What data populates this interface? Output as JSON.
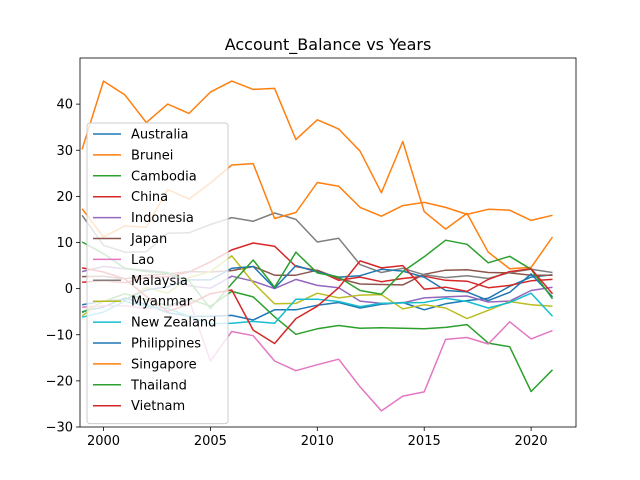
{
  "chart_data": {
    "type": "line",
    "title": "Account_Balance vs Years",
    "xlabel": "",
    "ylabel": "",
    "xlim": [
      1998.9,
      2022.1
    ],
    "ylim": [
      -30,
      50
    ],
    "x_ticks": [
      2000,
      2005,
      2010,
      2015,
      2020
    ],
    "y_ticks": [
      -30,
      -20,
      -10,
      0,
      10,
      20,
      30,
      40
    ],
    "grid": false,
    "legend_position": "center-left",
    "x": [
      1999,
      2000,
      2001,
      2002,
      2003,
      2004,
      2005,
      2006,
      2007,
      2008,
      2009,
      2010,
      2011,
      2012,
      2013,
      2014,
      2015,
      2016,
      2017,
      2018,
      2019,
      2020,
      2021
    ],
    "series": [
      {
        "name": "Australia",
        "color": "#1f77b4",
        "values": [
          -5.0,
          -4.0,
          -2.0,
          -3.5,
          -5.2,
          -6.0,
          -6.0,
          -5.8,
          -6.8,
          -4.6,
          -4.6,
          -3.6,
          -3.0,
          -4.2,
          -3.4,
          -3.0,
          -4.6,
          -3.3,
          -2.6,
          -2.1,
          0.5,
          2.5,
          3.0
        ]
      },
      {
        "name": "Brunei",
        "color": "#ff7f0e",
        "values": [
          30.2,
          45.0,
          42.0,
          36.0,
          40.0,
          38.0,
          42.6,
          45.0,
          43.2,
          43.4,
          32.3,
          36.6,
          34.6,
          29.8,
          20.8,
          31.9,
          16.7,
          12.9,
          16.3,
          7.9,
          4.3,
          4.6,
          11.2
        ]
      },
      {
        "name": "Cambodia",
        "color": "#2ca02c",
        "values": [
          -5.2,
          -2.8,
          -1.1,
          -2.4,
          -3.7,
          -2.2,
          -3.8,
          -0.6,
          -1.8,
          -6.1,
          -9.9,
          -8.7,
          -8.0,
          -8.6,
          -8.5,
          -8.6,
          -8.7,
          -8.4,
          -7.8,
          -11.8,
          -12.6,
          -22.3,
          -17.6
        ]
      },
      {
        "name": "China",
        "color": "#d62728",
        "values": [
          1.4,
          1.7,
          1.3,
          2.4,
          2.6,
          3.6,
          5.8,
          8.4,
          9.9,
          9.2,
          4.8,
          3.9,
          1.8,
          2.5,
          1.5,
          2.2,
          2.7,
          1.8,
          1.6,
          0.2,
          0.7,
          1.7,
          2.0
        ]
      },
      {
        "name": "Indonesia",
        "color": "#9467bd",
        "values": [
          3.7,
          4.8,
          4.3,
          4.0,
          3.5,
          0.6,
          0.1,
          2.7,
          1.6,
          0.0,
          2.0,
          0.7,
          0.2,
          -2.7,
          -3.2,
          -3.1,
          -2.0,
          -1.8,
          -1.6,
          -2.9,
          -2.7,
          -0.4,
          0.3
        ]
      },
      {
        "name": "Japan",
        "color": "#8c564b",
        "values": [
          2.6,
          2.7,
          2.1,
          2.9,
          3.2,
          3.7,
          3.6,
          3.9,
          4.8,
          2.9,
          2.9,
          4.0,
          2.2,
          1.0,
          0.9,
          0.8,
          3.1,
          4.0,
          4.1,
          3.5,
          3.4,
          2.9,
          2.9
        ]
      },
      {
        "name": "Lao",
        "color": "#e377c2",
        "values": [
          -4.0,
          -3.7,
          -3.7,
          -4.3,
          -4.1,
          -2.4,
          -15.7,
          -9.3,
          -10.2,
          -15.7,
          -17.8,
          -16.5,
          -15.3,
          -21.3,
          -26.5,
          -23.3,
          -22.4,
          -11.0,
          -10.6,
          -12.0,
          -7.2,
          -10.9,
          -9.1
        ]
      },
      {
        "name": "Malaysia",
        "color": "#7f7f7f",
        "values": [
          15.9,
          9.4,
          7.9,
          8.0,
          12.0,
          12.1,
          13.9,
          15.4,
          14.6,
          16.4,
          15.0,
          10.1,
          10.9,
          5.2,
          3.5,
          4.4,
          3.0,
          2.4,
          2.8,
          2.2,
          3.5,
          4.2,
          3.5
        ]
      },
      {
        "name": "Myanmar",
        "color": "#bcbd22",
        "values": [
          -5.9,
          -2.6,
          -2.4,
          0.2,
          -1.0,
          2.4,
          3.7,
          7.1,
          1.3,
          -3.3,
          -3.2,
          -1.0,
          -2.0,
          -1.4,
          -1.3,
          -4.4,
          -3.5,
          -4.2,
          -6.5,
          -4.7,
          -2.8,
          -3.5,
          -3.8
        ]
      },
      {
        "name": "New Zealand",
        "color": "#17becf",
        "values": [
          -6.2,
          -5.1,
          -2.7,
          -3.9,
          -4.3,
          -6.0,
          -7.6,
          -7.5,
          -7.1,
          -7.5,
          -2.3,
          -2.3,
          -2.8,
          -3.9,
          -3.2,
          -3.1,
          -3.0,
          -2.1,
          -2.8,
          -4.2,
          -3.0,
          -1.0,
          -6.0
        ]
      },
      {
        "name": "Philippines",
        "color": "#1f77b4",
        "values": [
          -3.5,
          -2.7,
          -2.4,
          -0.3,
          0.4,
          1.9,
          1.9,
          4.4,
          4.8,
          0.1,
          5.0,
          3.6,
          2.5,
          2.8,
          4.2,
          3.8,
          2.5,
          -0.4,
          -0.7,
          -2.6,
          -0.8,
          3.2,
          -1.8
        ]
      },
      {
        "name": "Singapore",
        "color": "#ff7f0e",
        "values": [
          17.3,
          11.2,
          13.6,
          13.3,
          21.5,
          19.4,
          22.9,
          26.8,
          27.1,
          15.2,
          16.5,
          23.0,
          22.2,
          17.6,
          15.7,
          18.0,
          18.7,
          17.6,
          16.1,
          17.2,
          17.0,
          14.8,
          15.9
        ]
      },
      {
        "name": "Thailand",
        "color": "#2ca02c",
        "values": [
          10.1,
          7.6,
          4.4,
          3.7,
          3.4,
          1.7,
          -4.3,
          1.1,
          6.2,
          0.3,
          7.9,
          3.4,
          2.5,
          -0.4,
          -1.2,
          3.7,
          6.9,
          10.5,
          9.6,
          5.6,
          7.0,
          4.2,
          -2.2
        ]
      },
      {
        "name": "Vietnam",
        "color": "#d62728",
        "values": [
          4.5,
          3.6,
          2.1,
          -1.7,
          -4.9,
          -3.4,
          -1.1,
          -0.3,
          -9.0,
          -11.9,
          -6.5,
          -3.8,
          0.2,
          6.0,
          4.5,
          5.0,
          -0.1,
          0.3,
          -0.6,
          2.0,
          3.7,
          4.3,
          -1.1
        ]
      }
    ]
  }
}
